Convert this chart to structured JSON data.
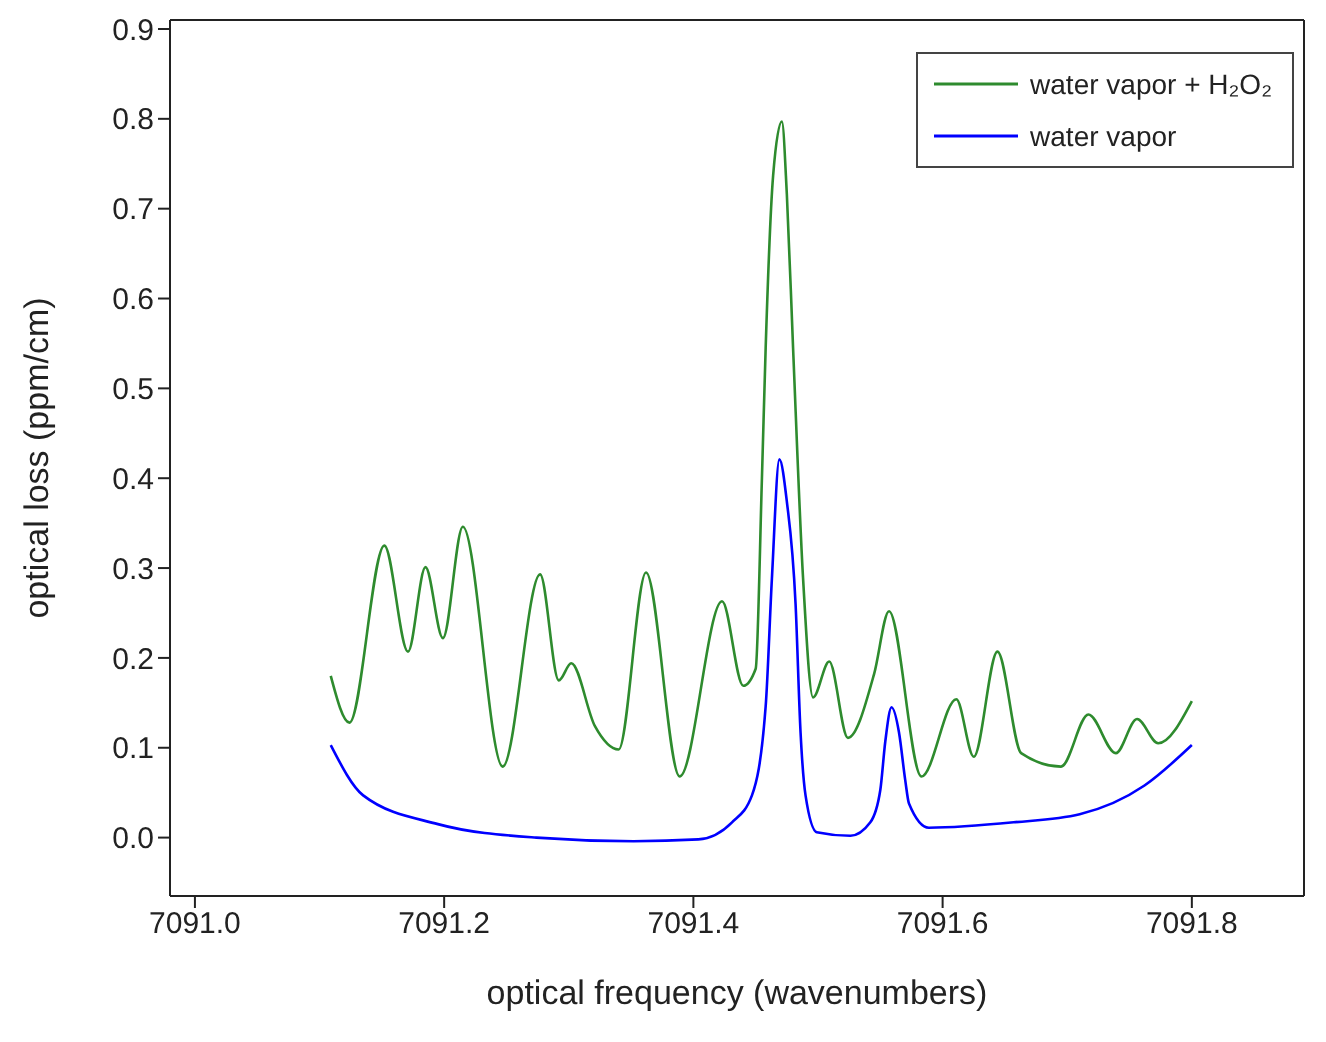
{
  "chart_data": {
    "type": "line",
    "xlabel": "optical frequency (wavenumbers)",
    "ylabel": "optical loss (ppm/cm)",
    "xlim": [
      7090.98,
      7091.89
    ],
    "xticks": [
      {
        "value": 7091.0,
        "label": "7091.0"
      },
      {
        "value": 7091.2,
        "label": "7091.2"
      },
      {
        "value": 7091.4,
        "label": "7091.4"
      },
      {
        "value": 7091.6,
        "label": "7091.6"
      },
      {
        "value": 7091.8,
        "label": "7091.8"
      }
    ],
    "ylim": [
      -0.065,
      0.91
    ],
    "yticks": [
      {
        "value": 0,
        "label": "0.0"
      },
      {
        "value": 0.1,
        "label": "0.1"
      },
      {
        "value": 0.2,
        "label": "0.2"
      },
      {
        "value": 0.3,
        "label": "0.3"
      },
      {
        "value": 0.4,
        "label": "0.4"
      },
      {
        "value": 0.5,
        "label": "0.5"
      },
      {
        "value": 0.6,
        "label": "0.6"
      },
      {
        "value": 0.7,
        "label": "0.7"
      },
      {
        "value": 0.8,
        "label": "0.8"
      },
      {
        "value": 0.9,
        "label": "0.9"
      }
    ],
    "legend": "top right",
    "marker": "none",
    "line_style": "solid",
    "series": [
      {
        "name": "water vapor + H₂O₂",
        "color": "#2e8b2e",
        "x": [
          7091.109,
          7091.124,
          7091.152,
          7091.171,
          7091.185,
          7091.199,
          7091.215,
          7091.247,
          7091.277,
          7091.292,
          7091.302,
          7091.321,
          7091.34,
          7091.362,
          7091.389,
          7091.423,
          7091.44,
          7091.45,
          7091.455,
          7091.458,
          7091.464,
          7091.471,
          7091.475,
          7091.48,
          7091.488,
          7091.496,
          7091.509,
          7091.524,
          7091.545,
          7091.557,
          7091.583,
          7091.611,
          7091.625,
          7091.644,
          7091.663,
          7091.695,
          7091.717,
          7091.739,
          7091.756,
          7091.773,
          7091.8
        ],
        "values": [
          0.18,
          0.128,
          0.325,
          0.207,
          0.301,
          0.222,
          0.346,
          0.079,
          0.293,
          0.175,
          0.194,
          0.124,
          0.098,
          0.295,
          0.068,
          0.263,
          0.169,
          0.188,
          0.4,
          0.545,
          0.737,
          0.797,
          0.716,
          0.545,
          0.289,
          0.156,
          0.196,
          0.111,
          0.182,
          0.252,
          0.068,
          0.154,
          0.09,
          0.207,
          0.094,
          0.079,
          0.137,
          0.094,
          0.132,
          0.105,
          0.152
        ]
      },
      {
        "name": "water vapor",
        "color": "#0000ff",
        "x": [
          7091.109,
          7091.135,
          7091.195,
          7091.274,
          7091.352,
          7091.404,
          7091.431,
          7091.447,
          7091.458,
          7091.463,
          7091.469,
          7091.475,
          7091.482,
          7091.486,
          7091.49,
          7091.499,
          7091.526,
          7091.542,
          7091.55,
          7091.554,
          7091.559,
          7091.565,
          7091.57,
          7091.573,
          7091.589,
          7091.657,
          7091.71,
          7091.762,
          7091.8
        ],
        "values": [
          0.103,
          0.047,
          0.015,
          0.0,
          -0.004,
          -0.002,
          0.017,
          0.047,
          0.146,
          0.288,
          0.421,
          0.374,
          0.26,
          0.117,
          0.047,
          0.006,
          0.002,
          0.017,
          0.053,
          0.107,
          0.145,
          0.117,
          0.064,
          0.038,
          0.011,
          0.017,
          0.026,
          0.058,
          0.103
        ]
      }
    ]
  }
}
